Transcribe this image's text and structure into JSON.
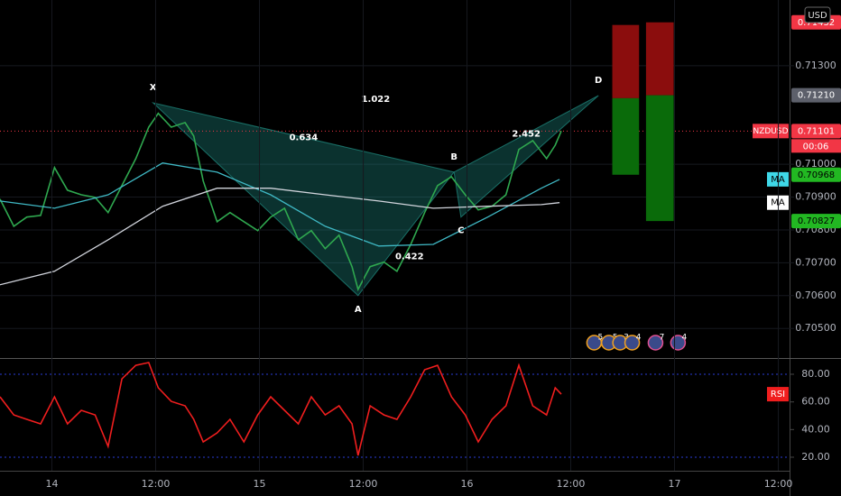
{
  "chart_data": [
    {
      "type": "line",
      "symbol": "NZDUSD",
      "currency": "USD",
      "countdown": "00:06",
      "xlim": [
        -6,
        85.3
      ],
      "xticks": [
        0,
        12,
        24,
        36,
        48,
        60,
        72,
        84
      ],
      "ylim": [
        0.7041,
        0.715
      ],
      "yticks": [
        {
          "value": 0.705,
          "label": "0.70500"
        },
        {
          "value": 0.706,
          "label": "0.70600"
        },
        {
          "value": 0.707,
          "label": "0.70700"
        },
        {
          "value": 0.708,
          "label": "0.70800"
        },
        {
          "value": 0.709,
          "label": "0.70900"
        },
        {
          "value": 0.71,
          "label": "0.71000"
        },
        {
          "value": 0.713,
          "label": "0.71300"
        }
      ],
      "grid": true,
      "series": [
        {
          "name": "NZDUSD",
          "color": "#2fa84f",
          "tag_color": "#f23645",
          "x": [
            -6.0,
            -4.4,
            -2.9,
            -1.3,
            0.3,
            1.8,
            3.4,
            5.0,
            6.5,
            8.1,
            9.7,
            11.2,
            12.3,
            13.8,
            15.4,
            16.4,
            17.5,
            19.1,
            20.6,
            22.2,
            23.8,
            25.3,
            26.9,
            28.5,
            30.0,
            31.6,
            33.2,
            34.7,
            35.4,
            36.8,
            38.4,
            39.9,
            41.5,
            43.1,
            44.6,
            46.2,
            47.8,
            49.3,
            50.9,
            52.5,
            54.0,
            55.6,
            57.2,
            58.2,
            58.9
          ],
          "values": [
            0.70894,
            0.70811,
            0.70839,
            0.70844,
            0.7099,
            0.70921,
            0.70907,
            0.70899,
            0.70853,
            0.70935,
            0.71017,
            0.71113,
            0.71155,
            0.71113,
            0.71127,
            0.71086,
            0.70949,
            0.70825,
            0.70853,
            0.70825,
            0.70798,
            0.70839,
            0.70866,
            0.7077,
            0.70798,
            0.70743,
            0.70784,
            0.70688,
            0.70619,
            0.70688,
            0.70702,
            0.70674,
            0.70756,
            0.70853,
            0.70935,
            0.70962,
            0.70907,
            0.70861,
            0.70872,
            0.70907,
            0.71045,
            0.71072,
            0.71017,
            0.71058,
            0.71101
          ]
        },
        {
          "name": "MA",
          "color": "#3fb8c4",
          "tag_color": "#3fd8e8",
          "x": [
            -6.0,
            0.3,
            6.5,
            12.8,
            19.1,
            25.3,
            31.6,
            37.8,
            44.1,
            50.4,
            56.6,
            58.7
          ],
          "values": [
            0.70888,
            0.70866,
            0.70907,
            0.71004,
            0.70976,
            0.70907,
            0.70811,
            0.70751,
            0.70756,
            0.70839,
            0.70927,
            0.70954
          ]
        },
        {
          "name": "MA",
          "color": "#d1d4dc",
          "tag_color": "#ffffff",
          "x": [
            -6.0,
            0.3,
            6.5,
            12.8,
            19.1,
            25.3,
            31.6,
            37.8,
            44.1,
            50.4,
            56.6,
            58.7
          ],
          "values": [
            0.70633,
            0.70674,
            0.7077,
            0.70872,
            0.70927,
            0.70927,
            0.70907,
            0.70888,
            0.70866,
            0.70872,
            0.70877,
            0.70883
          ]
        }
      ],
      "pattern": {
        "color": "#26a69a",
        "points": [
          {
            "label": "X",
            "x": 11.7,
            "y": 0.71187
          },
          {
            "label": "A",
            "x": 35.4,
            "y": 0.706
          },
          {
            "label": "B",
            "x": 46.5,
            "y": 0.70976
          },
          {
            "label": "C",
            "x": 47.3,
            "y": 0.70839
          },
          {
            "label": "D",
            "x": 63.2,
            "y": 0.71209
          }
        ],
        "ratios": [
          {
            "value": 1.022,
            "from": 0,
            "to": 4
          },
          {
            "value": 0.634,
            "from": 0,
            "to": 2
          },
          {
            "value": 0.422,
            "from": 1,
            "to": 3
          },
          {
            "value": 2.452,
            "from": 2,
            "to": 4
          }
        ]
      },
      "loss_color": "#8b0d0d",
      "profit_color": "#0a6b0a",
      "positions": [
        {
          "x": [
            64.8,
            67.9
          ],
          "stop": 0.71424,
          "entry": 0.71201,
          "target": {
            "value": 0.70968,
            "label": "0.70968"
          }
        },
        {
          "x": [
            68.7,
            71.9
          ],
          "stop": {
            "value": 0.71432,
            "label": "0.71432"
          },
          "entry": {
            "value": 0.7121,
            "label": "0.71210"
          },
          "target": {
            "value": 0.70827,
            "label": "0.70827"
          }
        }
      ],
      "events": [
        {
          "x": 62.7,
          "count": 5
        },
        {
          "x": 64.4,
          "count": 5
        },
        {
          "x": 65.7,
          "count": 3
        },
        {
          "x": 67.1,
          "count": 4
        },
        {
          "x": 69.8,
          "count": 7
        },
        {
          "x": 72.4,
          "count": 4
        }
      ]
    },
    {
      "type": "line",
      "xlim": [
        -6,
        85.3
      ],
      "xticks": [
        {
          "value": 0,
          "label": "14"
        },
        {
          "value": 12,
          "label": "12:00"
        },
        {
          "value": 24,
          "label": "15"
        },
        {
          "value": 36,
          "label": "12:00"
        },
        {
          "value": 48,
          "label": "16"
        },
        {
          "value": 60,
          "label": "12:00"
        },
        {
          "value": 72,
          "label": "17"
        },
        {
          "value": 84,
          "label": "12:00"
        }
      ],
      "ylim": [
        10.2,
        91.1
      ],
      "yticks": [
        {
          "value": 20,
          "label": "20.00"
        },
        {
          "value": 40,
          "label": "40.00"
        },
        {
          "value": 60,
          "label": "60.00"
        },
        {
          "value": 80,
          "label": "80.00"
        }
      ],
      "levels": [
        80,
        20
      ],
      "level_color": "#2a3bd6",
      "series": [
        {
          "name": "RSI",
          "color": "#f01e1e",
          "tag_color": "#f01e1e",
          "x": [
            -6.0,
            -4.4,
            -2.9,
            -1.3,
            0.3,
            1.8,
            3.4,
            5.0,
            6.5,
            8.1,
            9.7,
            11.2,
            12.3,
            13.8,
            15.4,
            16.4,
            17.5,
            19.1,
            20.6,
            22.2,
            23.8,
            25.3,
            26.9,
            28.5,
            30.0,
            31.6,
            33.2,
            34.7,
            35.4,
            36.8,
            38.4,
            39.9,
            41.5,
            43.1,
            44.6,
            46.2,
            47.8,
            49.3,
            50.9,
            52.5,
            54.0,
            55.6,
            57.2,
            58.2,
            58.9
          ],
          "values": [
            63.7,
            50.6,
            47.4,
            44.1,
            63.7,
            44.1,
            53.9,
            50.6,
            27.8,
            76.7,
            86.5,
            88.5,
            70.2,
            60.4,
            57.2,
            47.4,
            31.1,
            37.6,
            47.4,
            31.1,
            50.6,
            63.7,
            53.9,
            44.1,
            63.7,
            50.6,
            57.2,
            44.1,
            21.3,
            57.2,
            50.6,
            47.4,
            63.7,
            83.3,
            86.5,
            63.7,
            50.6,
            31.1,
            47.4,
            57.2,
            86.5,
            57.2,
            50.6,
            70.2,
            65.6
          ]
        }
      ]
    }
  ]
}
